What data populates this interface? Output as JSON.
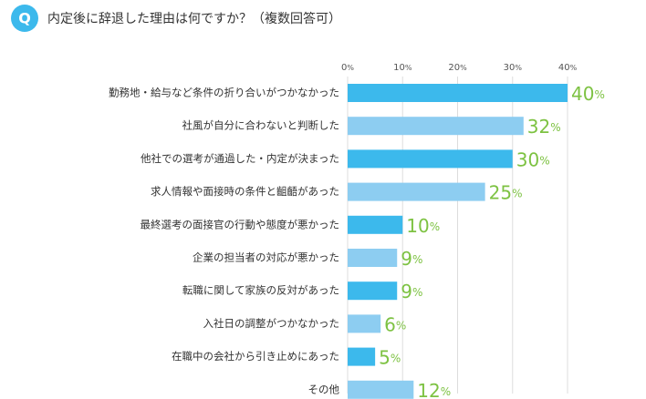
{
  "question_marker": "Q",
  "chart_data": {
    "type": "barh",
    "title": "内定後に辞退した理由は何ですか？（複数回答可）",
    "categories": [
      "勤務地・給与など条件の折り合いがつかなかった",
      "社風が自分に合わないと判断した",
      "他社での選考が通過した・内定が決まった",
      "求人情報や面接時の条件と齟齬があった",
      "最終選考の面接官の行動や態度が悪かった",
      "企業の担当者の対応が悪かった",
      "転職に関して家族の反対があった",
      "入社日の調整がつかなかった",
      "在職中の会社から引き止めにあった",
      "その他"
    ],
    "values": [
      40,
      32,
      30,
      25,
      10,
      9,
      9,
      6,
      5,
      12
    ],
    "value_labels": [
      "40%",
      "32%",
      "30%",
      "25%",
      "10%",
      "9%",
      "9%",
      "6%",
      "5%",
      "12%"
    ],
    "colors": [
      "#3cb9ec",
      "#8dcdf1",
      "#3cb9ec",
      "#8dcdf1",
      "#3cb9ec",
      "#8dcdf1",
      "#3cb9ec",
      "#8dcdf1",
      "#3cb9ec",
      "#8dcdf1"
    ],
    "label_color": "#7dc242",
    "xlim": [
      0,
      40
    ],
    "xticks": [
      {
        "value": 0,
        "label": "0%"
      },
      {
        "value": 10,
        "label": "10%"
      },
      {
        "value": 20,
        "label": "20%"
      },
      {
        "value": 30,
        "label": "30%"
      },
      {
        "value": 40,
        "label": "40%"
      }
    ],
    "grid": true
  }
}
